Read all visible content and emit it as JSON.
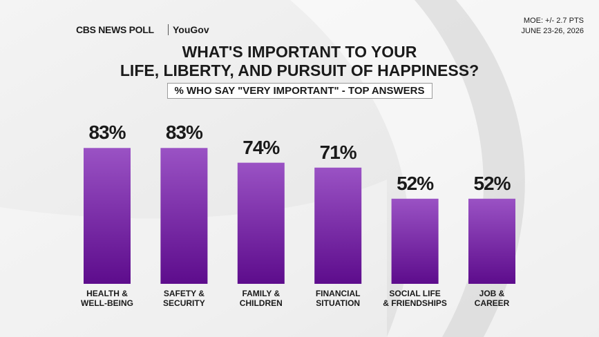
{
  "chart_data": {
    "type": "bar",
    "brand": "CBS NEWS POLL",
    "partner": "YouGov",
    "moe": "MOE: +/- 2.7 PTS",
    "date": "JUNE 23-26, 2026",
    "title": "WHAT'S IMPORTANT TO YOUR\nLIFE, LIBERTY, AND PURSUIT OF HAPPINESS?",
    "subtitle": "% WHO SAY \"VERY IMPORTANT\" - TOP ANSWERS",
    "categories": [
      "HEALTH &\nWELL-BEING",
      "SAFETY &\nSECURITY",
      "FAMILY &\nCHILDREN",
      "FINANCIAL\nSITUATION",
      "SOCIAL LIFE\n& FRIENDSHIPS",
      "JOB &\nCAREER"
    ],
    "values": [
      83,
      83,
      74,
      71,
      52,
      52
    ],
    "value_labels": [
      "83%",
      "83%",
      "74%",
      "71%",
      "52%",
      "52%"
    ],
    "color": "#7b2cb0"
  }
}
